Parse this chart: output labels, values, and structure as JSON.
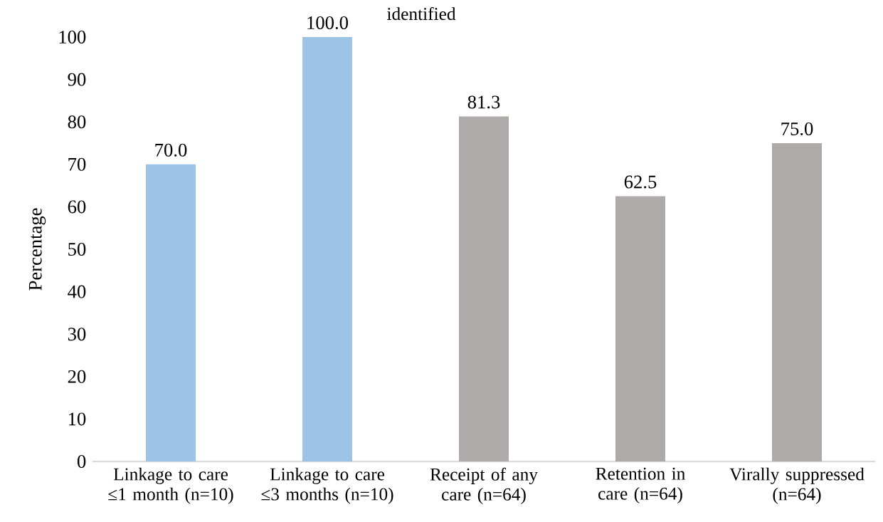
{
  "chart_data": {
    "type": "bar",
    "title": "identified",
    "ylabel": "Percentage",
    "categories": [
      "Linkage to care ≤1 month (n=10)",
      "Linkage to care ≤3 months (n=10)",
      "Receipt of any care (n=64)",
      "Retention in care (n=64)",
      "Virally suppressed (n=64)"
    ],
    "values": [
      70.0,
      100.0,
      81.3,
      62.5,
      75.0
    ],
    "value_labels": [
      "70.0",
      "100.0",
      "81.3",
      "62.5",
      "75.0"
    ],
    "colors": [
      "#9dc3e6",
      "#9dc3e6",
      "#aeaaaa",
      "#aeaaaa",
      "#aeaaaa"
    ],
    "ylim": [
      0,
      100
    ],
    "yticks": [
      0,
      10,
      20,
      30,
      40,
      50,
      60,
      70,
      80,
      90,
      100
    ],
    "grid": false
  }
}
